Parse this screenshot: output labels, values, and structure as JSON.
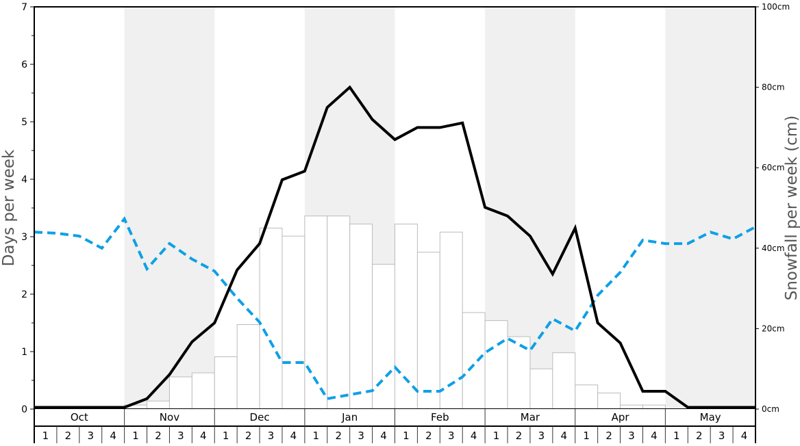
{
  "chart_data": {
    "type": "bar+line",
    "ylabel_left": "Days per week",
    "ylabel_right": "Snowfall per week (cm)",
    "ylim_left": [
      0,
      7
    ],
    "ylim_right": [
      0,
      100
    ],
    "left_ticks": [
      "0",
      "1",
      "2",
      "3",
      "4",
      "5",
      "6",
      "7"
    ],
    "right_ticks": [
      "0cm",
      "20cm",
      "40cm",
      "60cm",
      "80cm",
      "100cm"
    ],
    "right_tick_values": [
      0,
      20,
      40,
      60,
      80,
      100
    ],
    "months": [
      "Oct",
      "Nov",
      "Dec",
      "Jan",
      "Feb",
      "Mar",
      "Apr",
      "May"
    ],
    "shaded_months": [
      false,
      true,
      false,
      true,
      false,
      true,
      false,
      true
    ],
    "week_labels": [
      "1",
      "2",
      "3",
      "4"
    ],
    "snowfall_cm": [
      0,
      0,
      0,
      0,
      1,
      2,
      8,
      9,
      13,
      21,
      45,
      43,
      48,
      48,
      46,
      36,
      46,
      39,
      44,
      24,
      22,
      18,
      10,
      14,
      6,
      4,
      1,
      1,
      0,
      0,
      0,
      0
    ],
    "series": [
      {
        "name": "Days per week (black)",
        "color": "#000000",
        "values": [
          0.03,
          0.03,
          0.03,
          0.03,
          0.03,
          0.18,
          0.6,
          1.17,
          1.5,
          2.42,
          2.88,
          3.99,
          4.14,
          5.25,
          5.6,
          5.04,
          4.69,
          4.9,
          4.9,
          4.98,
          3.51,
          3.36,
          3.01,
          2.35,
          3.15,
          1.5,
          1.15,
          0.31,
          0.31,
          0.03,
          0.03,
          0.03,
          0.03
        ]
      },
      {
        "name": "Days per week (blue dashed)",
        "color": "#0ea0e6",
        "values": [
          3.08,
          3.06,
          3.01,
          2.8,
          3.31,
          2.44,
          2.88,
          2.61,
          2.4,
          1.93,
          1.51,
          0.81,
          0.81,
          0.18,
          0.25,
          0.32,
          0.73,
          0.31,
          0.31,
          0.56,
          0.98,
          1.23,
          1.02,
          1.57,
          1.36,
          1.98,
          2.38,
          2.94,
          2.88,
          2.88,
          3.08,
          2.96,
          3.17
        ]
      }
    ],
    "colors": {
      "shade": "#f0f0f0",
      "bar_fill": "#ffffff",
      "bar_stroke": "#bbbbbb"
    }
  }
}
